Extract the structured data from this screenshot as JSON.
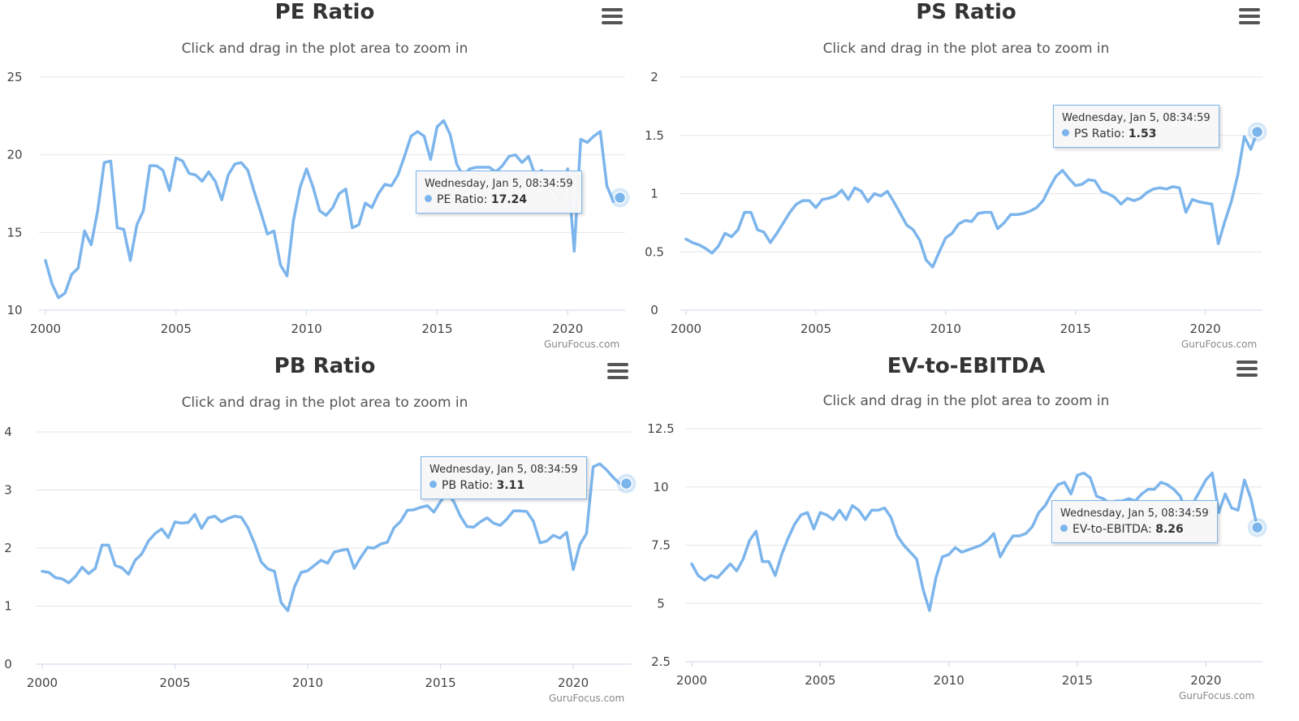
{
  "subtitle": "Click and drag in the plot area to zoom in",
  "credit": "GuruFocus.com",
  "colors": {
    "series": "#7cb5ec",
    "grid": "#e6e6e6",
    "axis": "#ccd6eb"
  },
  "icons": {
    "menu": "hamburger-menu-icon"
  },
  "chart_data": [
    {
      "type": "line",
      "title": "PE Ratio",
      "ylim": [
        10,
        25
      ],
      "yticks": [
        "10",
        "15",
        "20",
        "25"
      ],
      "xlim": [
        2000,
        2022.2
      ],
      "xticks": [
        "2000",
        "2005",
        "2010",
        "2015",
        "2020"
      ],
      "series": [
        {
          "name": "PE Ratio",
          "x": [
            2000.0,
            2000.25,
            2000.5,
            2000.75,
            2001.0,
            2001.25,
            2001.5,
            2001.75,
            2002.0,
            2002.25,
            2002.5,
            2002.75,
            2003.0,
            2003.25,
            2003.5,
            2003.75,
            2004.0,
            2004.25,
            2004.5,
            2004.75,
            2005.0,
            2005.25,
            2005.5,
            2005.75,
            2006.0,
            2006.25,
            2006.5,
            2006.75,
            2007.0,
            2007.25,
            2007.5,
            2007.75,
            2008.0,
            2008.25,
            2008.5,
            2008.75,
            2009.0,
            2009.25,
            2009.5,
            2009.75,
            2010.0,
            2010.25,
            2010.5,
            2010.75,
            2011.0,
            2011.25,
            2011.5,
            2011.75,
            2012.0,
            2012.25,
            2012.5,
            2012.75,
            2013.0,
            2013.25,
            2013.5,
            2013.75,
            2014.0,
            2014.25,
            2014.5,
            2014.75,
            2015.0,
            2015.25,
            2015.5,
            2015.75,
            2016.0,
            2016.25,
            2016.5,
            2016.75,
            2017.0,
            2017.25,
            2017.5,
            2017.75,
            2018.0,
            2018.25,
            2018.5,
            2018.75,
            2019.0,
            2019.25,
            2019.5,
            2019.75,
            2020.0,
            2020.25,
            2020.5,
            2020.75,
            2021.0,
            2021.25,
            2021.5,
            2021.75,
            2022.0
          ],
          "values": [
            13.2,
            11.7,
            10.8,
            11.1,
            12.3,
            12.7,
            15.1,
            14.2,
            16.4,
            19.5,
            19.6,
            15.3,
            15.2,
            13.2,
            15.5,
            16.4,
            19.3,
            19.3,
            19.0,
            17.7,
            19.8,
            19.6,
            18.8,
            18.7,
            18.3,
            18.9,
            18.3,
            17.1,
            18.7,
            19.4,
            19.5,
            19.0,
            17.6,
            16.3,
            14.9,
            15.1,
            12.9,
            12.2,
            15.8,
            17.9,
            19.1,
            17.9,
            16.4,
            16.1,
            16.6,
            17.5,
            17.8,
            15.3,
            15.5,
            16.9,
            16.6,
            17.5,
            18.1,
            18.0,
            18.7,
            19.9,
            21.2,
            21.5,
            21.2,
            19.7,
            21.8,
            22.2,
            21.3,
            19.4,
            18.6,
            19.1,
            19.2,
            19.2,
            19.2,
            18.9,
            19.3,
            19.9,
            20.0,
            19.5,
            19.9,
            18.7,
            19.0,
            18.0,
            17.6,
            17.1,
            19.1,
            13.8,
            21.0,
            20.8,
            21.2,
            21.5,
            18.0,
            17.0,
            17.24
          ]
        }
      ],
      "tooltip": {
        "date": "Wednesday, Jan 5, 08:34:59",
        "series": "PE Ratio",
        "value": "17.24"
      }
    },
    {
      "type": "line",
      "title": "PS Ratio",
      "ylim": [
        0,
        2
      ],
      "yticks": [
        "0",
        "0.5",
        "1",
        "1.5",
        "2"
      ],
      "xlim": [
        2000,
        2022.2
      ],
      "xticks": [
        "2000",
        "2005",
        "2010",
        "2015",
        "2020"
      ],
      "series": [
        {
          "name": "PS Ratio",
          "x": [
            2000.0,
            2000.25,
            2000.5,
            2000.75,
            2001.0,
            2001.25,
            2001.5,
            2001.75,
            2002.0,
            2002.25,
            2002.5,
            2002.75,
            2003.0,
            2003.25,
            2003.5,
            2003.75,
            2004.0,
            2004.25,
            2004.5,
            2004.75,
            2005.0,
            2005.25,
            2005.5,
            2005.75,
            2006.0,
            2006.25,
            2006.5,
            2006.75,
            2007.0,
            2007.25,
            2007.5,
            2007.75,
            2008.0,
            2008.25,
            2008.5,
            2008.75,
            2009.0,
            2009.25,
            2009.5,
            2009.75,
            2010.0,
            2010.25,
            2010.5,
            2010.75,
            2011.0,
            2011.25,
            2011.5,
            2011.75,
            2012.0,
            2012.25,
            2012.5,
            2012.75,
            2013.0,
            2013.25,
            2013.5,
            2013.75,
            2014.0,
            2014.25,
            2014.5,
            2014.75,
            2015.0,
            2015.25,
            2015.5,
            2015.75,
            2016.0,
            2016.25,
            2016.5,
            2016.75,
            2017.0,
            2017.25,
            2017.5,
            2017.75,
            2018.0,
            2018.25,
            2018.5,
            2018.75,
            2019.0,
            2019.25,
            2019.5,
            2019.75,
            2020.0,
            2020.25,
            2020.5,
            2020.75,
            2021.0,
            2021.25,
            2021.5,
            2021.75,
            2022.0
          ],
          "values": [
            0.61,
            0.58,
            0.56,
            0.53,
            0.49,
            0.55,
            0.66,
            0.63,
            0.69,
            0.84,
            0.84,
            0.69,
            0.67,
            0.58,
            0.66,
            0.75,
            0.84,
            0.91,
            0.94,
            0.94,
            0.88,
            0.95,
            0.96,
            0.98,
            1.03,
            0.95,
            1.05,
            1.02,
            0.93,
            1.0,
            0.98,
            1.02,
            0.93,
            0.83,
            0.73,
            0.69,
            0.6,
            0.43,
            0.37,
            0.5,
            0.62,
            0.66,
            0.74,
            0.77,
            0.76,
            0.83,
            0.84,
            0.84,
            0.7,
            0.75,
            0.82,
            0.82,
            0.83,
            0.85,
            0.88,
            0.94,
            1.05,
            1.15,
            1.2,
            1.13,
            1.07,
            1.08,
            1.12,
            1.11,
            1.02,
            1.0,
            0.97,
            0.91,
            0.96,
            0.94,
            0.96,
            1.01,
            1.04,
            1.05,
            1.04,
            1.06,
            1.05,
            0.84,
            0.95,
            0.93,
            0.92,
            0.91,
            0.57,
            0.76,
            0.93,
            1.16,
            1.49,
            1.38,
            1.53
          ]
        }
      ],
      "tooltip": {
        "date": "Wednesday, Jan 5, 08:34:59",
        "series": "PS Ratio",
        "value": "1.53"
      }
    },
    {
      "type": "line",
      "title": "PB Ratio",
      "ylim": [
        0,
        4
      ],
      "yticks": [
        "0",
        "1",
        "2",
        "3",
        "4"
      ],
      "xlim": [
        2000,
        2022.2
      ],
      "xticks": [
        "2000",
        "2005",
        "2010",
        "2015",
        "2020"
      ],
      "series": [
        {
          "name": "PB Ratio",
          "x": [
            2000.0,
            2000.25,
            2000.5,
            2000.75,
            2001.0,
            2001.25,
            2001.5,
            2001.75,
            2002.0,
            2002.25,
            2002.5,
            2002.75,
            2003.0,
            2003.25,
            2003.5,
            2003.75,
            2004.0,
            2004.25,
            2004.5,
            2004.75,
            2005.0,
            2005.25,
            2005.5,
            2005.75,
            2006.0,
            2006.25,
            2006.5,
            2006.75,
            2007.0,
            2007.25,
            2007.5,
            2007.75,
            2008.0,
            2008.25,
            2008.5,
            2008.75,
            2009.0,
            2009.25,
            2009.5,
            2009.75,
            2010.0,
            2010.25,
            2010.5,
            2010.75,
            2011.0,
            2011.25,
            2011.5,
            2011.75,
            2012.0,
            2012.25,
            2012.5,
            2012.75,
            2013.0,
            2013.25,
            2013.5,
            2013.75,
            2014.0,
            2014.25,
            2014.5,
            2014.75,
            2015.0,
            2015.25,
            2015.5,
            2015.75,
            2016.0,
            2016.25,
            2016.5,
            2016.75,
            2017.0,
            2017.25,
            2017.5,
            2017.75,
            2018.0,
            2018.25,
            2018.5,
            2018.75,
            2019.0,
            2019.25,
            2019.5,
            2019.75,
            2020.0,
            2020.25,
            2020.5,
            2020.75,
            2021.0,
            2021.25,
            2021.5,
            2021.75,
            2022.0
          ],
          "values": [
            1.6,
            1.58,
            1.49,
            1.47,
            1.4,
            1.51,
            1.67,
            1.56,
            1.65,
            2.05,
            2.05,
            1.7,
            1.66,
            1.55,
            1.79,
            1.9,
            2.12,
            2.25,
            2.33,
            2.18,
            2.45,
            2.43,
            2.44,
            2.58,
            2.34,
            2.52,
            2.55,
            2.45,
            2.51,
            2.55,
            2.53,
            2.35,
            2.08,
            1.76,
            1.64,
            1.6,
            1.06,
            0.92,
            1.33,
            1.58,
            1.61,
            1.7,
            1.79,
            1.74,
            1.93,
            1.96,
            1.98,
            1.65,
            1.84,
            2.01,
            2.0,
            2.07,
            2.1,
            2.35,
            2.46,
            2.65,
            2.66,
            2.7,
            2.73,
            2.62,
            2.8,
            2.95,
            2.8,
            2.55,
            2.37,
            2.36,
            2.45,
            2.52,
            2.43,
            2.39,
            2.5,
            2.64,
            2.64,
            2.63,
            2.46,
            2.09,
            2.12,
            2.22,
            2.17,
            2.27,
            1.63,
            2.06,
            2.25,
            3.4,
            3.45,
            3.35,
            3.22,
            3.11,
            3.11
          ]
        }
      ],
      "tooltip": {
        "date": "Wednesday, Jan 5, 08:34:59",
        "series": "PB Ratio",
        "value": "3.11"
      }
    },
    {
      "type": "line",
      "title": "EV-to-EBITDA",
      "ylim": [
        2.5,
        12.5
      ],
      "yticks": [
        "2.5",
        "5",
        "7.5",
        "10",
        "12.5"
      ],
      "xlim": [
        2000,
        2022.2
      ],
      "xticks": [
        "2000",
        "2005",
        "2010",
        "2015",
        "2020"
      ],
      "series": [
        {
          "name": "EV-to-EBITDA",
          "x": [
            2000.0,
            2000.25,
            2000.5,
            2000.75,
            2001.0,
            2001.25,
            2001.5,
            2001.75,
            2002.0,
            2002.25,
            2002.5,
            2002.75,
            2003.0,
            2003.25,
            2003.5,
            2003.75,
            2004.0,
            2004.25,
            2004.5,
            2004.75,
            2005.0,
            2005.25,
            2005.5,
            2005.75,
            2006.0,
            2006.25,
            2006.5,
            2006.75,
            2007.0,
            2007.25,
            2007.5,
            2007.75,
            2008.0,
            2008.25,
            2008.5,
            2008.75,
            2009.0,
            2009.25,
            2009.5,
            2009.75,
            2010.0,
            2010.25,
            2010.5,
            2010.75,
            2011.0,
            2011.25,
            2011.5,
            2011.75,
            2012.0,
            2012.25,
            2012.5,
            2012.75,
            2013.0,
            2013.25,
            2013.5,
            2013.75,
            2014.0,
            2014.25,
            2014.5,
            2014.75,
            2015.0,
            2015.25,
            2015.5,
            2015.75,
            2016.0,
            2016.25,
            2016.5,
            2016.75,
            2017.0,
            2017.25,
            2017.5,
            2017.75,
            2018.0,
            2018.25,
            2018.5,
            2018.75,
            2019.0,
            2019.25,
            2019.5,
            2019.75,
            2020.0,
            2020.25,
            2020.5,
            2020.75,
            2021.0,
            2021.25,
            2021.5,
            2021.75,
            2022.0
          ],
          "values": [
            6.7,
            6.2,
            6.0,
            6.2,
            6.1,
            6.4,
            6.7,
            6.4,
            6.9,
            7.7,
            8.1,
            6.8,
            6.8,
            6.2,
            7.1,
            7.8,
            8.4,
            8.8,
            8.9,
            8.2,
            8.9,
            8.8,
            8.6,
            9.0,
            8.6,
            9.2,
            9.0,
            8.6,
            9.0,
            9.0,
            9.1,
            8.7,
            7.9,
            7.5,
            7.2,
            6.9,
            5.6,
            4.7,
            6.1,
            7.0,
            7.1,
            7.4,
            7.2,
            7.3,
            7.4,
            7.5,
            7.7,
            8.0,
            7.0,
            7.5,
            7.9,
            7.9,
            8.0,
            8.3,
            8.9,
            9.2,
            9.7,
            10.1,
            10.2,
            9.7,
            10.5,
            10.6,
            10.4,
            9.6,
            9.5,
            9.3,
            9.4,
            9.4,
            9.5,
            9.4,
            9.7,
            9.9,
            9.9,
            10.2,
            10.1,
            9.9,
            9.6,
            8.9,
            9.3,
            9.8,
            10.3,
            10.6,
            8.9,
            9.7,
            9.1,
            9.0,
            10.3,
            9.5,
            8.26
          ]
        }
      ],
      "tooltip": {
        "date": "Wednesday, Jan 5, 08:34:59",
        "series": "EV-to-EBITDA",
        "value": "8.26"
      }
    }
  ]
}
